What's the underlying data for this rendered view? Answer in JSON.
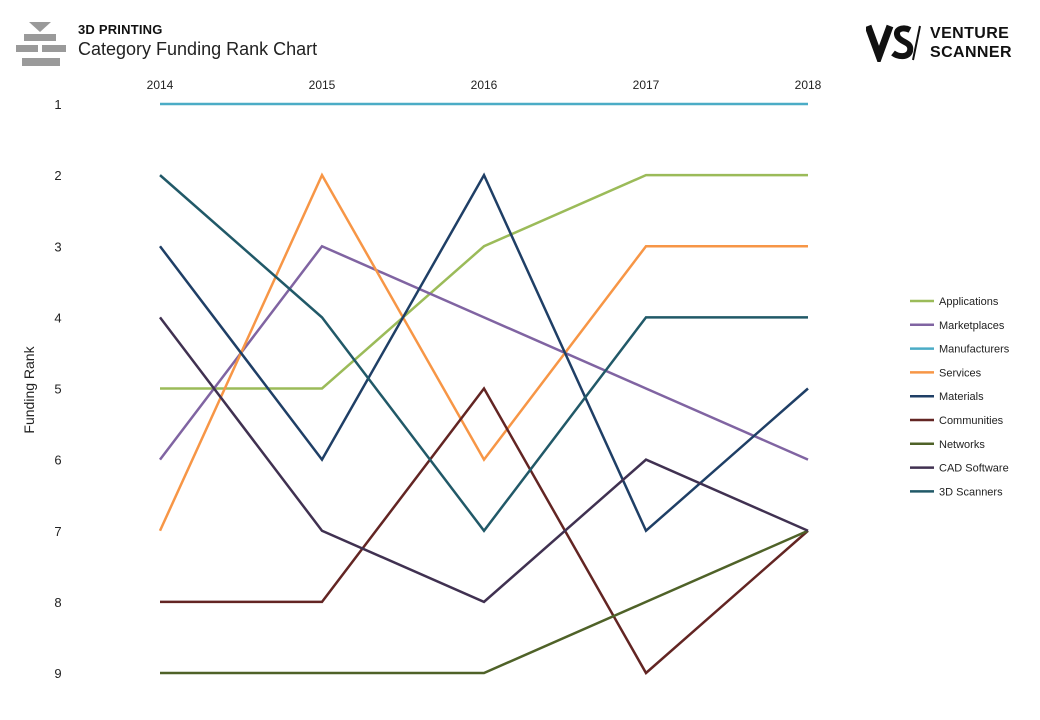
{
  "header": {
    "eyebrow": "3D PRINTING",
    "title": "Category Funding Rank Chart"
  },
  "logo": {
    "line1": "VENTURE",
    "line2": "SCANNER"
  },
  "chart_data": {
    "type": "line",
    "title": "Category Funding Rank Chart",
    "x": [
      "2014",
      "2015",
      "2016",
      "2017",
      "2018"
    ],
    "ylabel": "Funding Rank",
    "yticks": [
      1,
      2,
      3,
      4,
      5,
      6,
      7,
      8,
      9
    ],
    "ylim": [
      1,
      9
    ],
    "y_inverted": true,
    "grid": false,
    "legend_position": "right",
    "series": [
      {
        "name": "Applications",
        "color": "#9bbb59",
        "values": [
          5,
          5,
          3,
          2,
          2
        ]
      },
      {
        "name": "Marketplaces",
        "color": "#8064a2",
        "values": [
          6,
          3,
          4,
          5,
          6
        ]
      },
      {
        "name": "Manufacturers",
        "color": "#4bacc6",
        "values": [
          1,
          1,
          1,
          1,
          1
        ]
      },
      {
        "name": "Services",
        "color": "#f79646",
        "values": [
          7,
          2,
          6,
          3,
          3
        ]
      },
      {
        "name": "Materials",
        "color": "#1f3f66",
        "values": [
          3,
          6,
          2,
          7,
          5
        ]
      },
      {
        "name": "Communities",
        "color": "#632523",
        "values": [
          8,
          8,
          5,
          9,
          7
        ]
      },
      {
        "name": "Networks",
        "color": "#4f6228",
        "values": [
          9,
          9,
          9,
          8,
          7
        ]
      },
      {
        "name": "CAD Software",
        "color": "#403151",
        "values": [
          4,
          7,
          8,
          6,
          7
        ]
      },
      {
        "name": "3D Scanners",
        "color": "#215968",
        "values": [
          2,
          4,
          7,
          4,
          4
        ]
      }
    ]
  }
}
